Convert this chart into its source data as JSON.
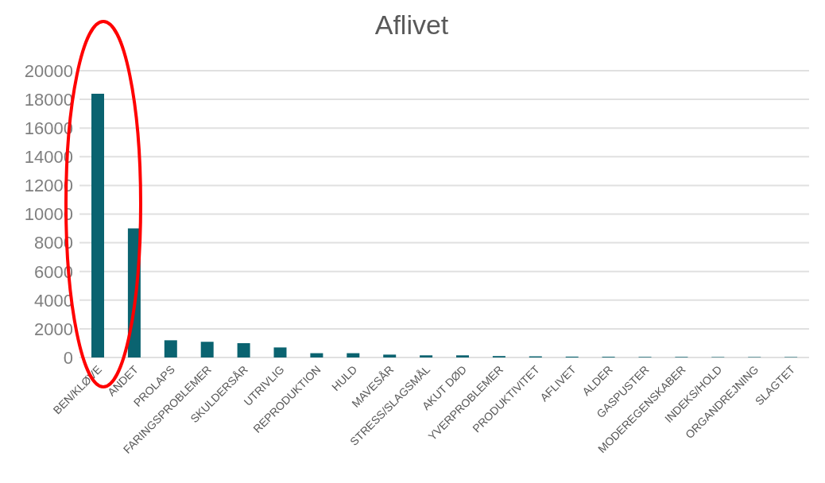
{
  "chart_data": {
    "type": "bar",
    "title": "Aflivet",
    "categories": [
      "BEN/KLØVE",
      "ANDET",
      "PROLAPS",
      "FARINGSPROBLEMER",
      "SKULDERSÅR",
      "UTRIVLIG",
      "REPRODUKTION",
      "HULD",
      "MAVESÅR",
      "STRESS/SLAGSMÅL",
      "AKUT DØD",
      "YVERPROBLEMER",
      "PRODUKTIVITET",
      "AFLIVET",
      "ALDER",
      "GASPUSTER",
      "MODEREGENSKABER",
      "INDEKS/HOLD",
      "ORGANDREJNING",
      "SLAGTET"
    ],
    "values": [
      18400,
      9000,
      1200,
      1100,
      1000,
      700,
      300,
      300,
      200,
      150,
      150,
      100,
      80,
      60,
      50,
      40,
      40,
      30,
      30,
      30
    ],
    "color": "#0a6370",
    "ylim": [
      0,
      20000
    ],
    "yticks": [
      0,
      2000,
      4000,
      6000,
      8000,
      10000,
      12000,
      14000,
      16000,
      18000,
      20000
    ],
    "grid": "y"
  }
}
